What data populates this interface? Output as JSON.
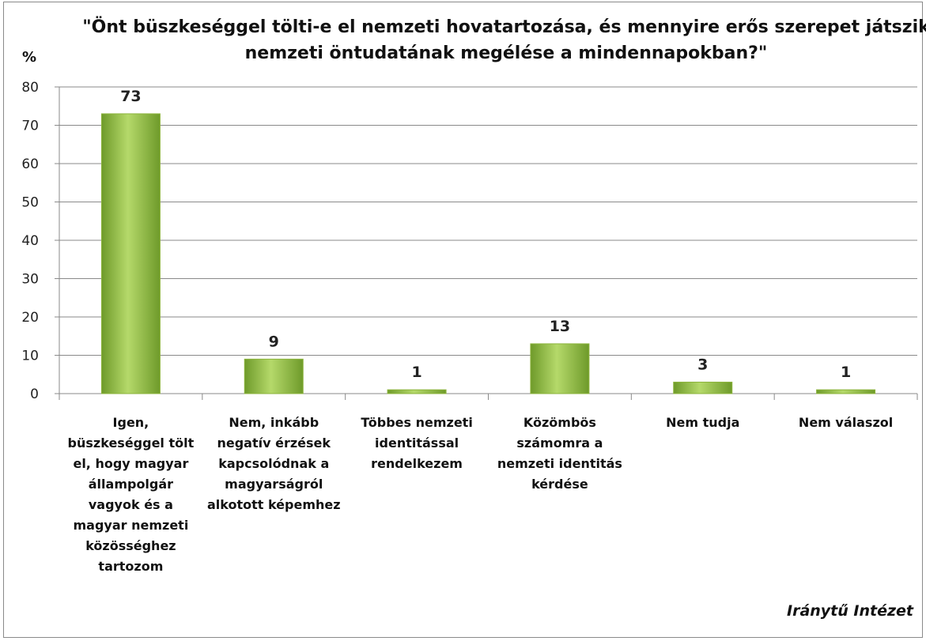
{
  "chart_data": {
    "type": "bar",
    "title": "\"Önt büszkeséggel tölti-e el nemzeti hovatartozása, és mennyire erős szerepet játszik nemzeti öntudatának megélése a mindennapokban?\"",
    "y_label": "%",
    "annotation": "Iránytű Intézet",
    "categories": [
      "Igen, büszkeséggel tölt el, hogy magyar állampolgár vagyok és a magyar nemzeti közösséghez tartozom",
      "Nem, inkább negatív érzések kapcsolódnak a magyarságról alkotott képemhez",
      "Többes nemzeti identitással rendelkezem",
      "Közömbös számomra a nemzeti identitás kérdése",
      "Nem tudja",
      "Nem válaszol"
    ],
    "values": [
      73,
      9,
      1,
      13,
      3,
      1
    ],
    "color": "#8cb43c",
    "ylim": [
      0,
      80
    ],
    "yticks": [
      0,
      10,
      20,
      30,
      40,
      50,
      60,
      70,
      80
    ],
    "grid": true
  }
}
